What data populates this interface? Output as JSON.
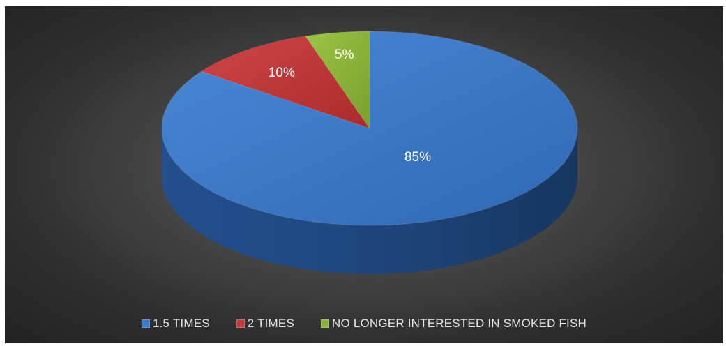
{
  "chart_data": {
    "type": "pie",
    "style": "3d",
    "title": "",
    "slices": [
      {
        "label": "1.5 TIMES",
        "value": 85,
        "display": "85%",
        "color": "#3c78c8"
      },
      {
        "label": "2 TIMES",
        "value": 10,
        "display": "10%",
        "color": "#c0383a"
      },
      {
        "label": "NO LONGER INTERESTED IN SMOKED FISH",
        "value": 5,
        "display": "5%",
        "color": "#8bb33a"
      }
    ],
    "legend_position": "bottom",
    "background": "#3a3a3a"
  },
  "legend": {
    "items": [
      {
        "label": "1.5 TIMES",
        "color": "#3c78c8"
      },
      {
        "label": "2 TIMES",
        "color": "#c0383a"
      },
      {
        "label": "NO LONGER INTERESTED IN SMOKED FISH",
        "color": "#8bb33a"
      }
    ]
  }
}
